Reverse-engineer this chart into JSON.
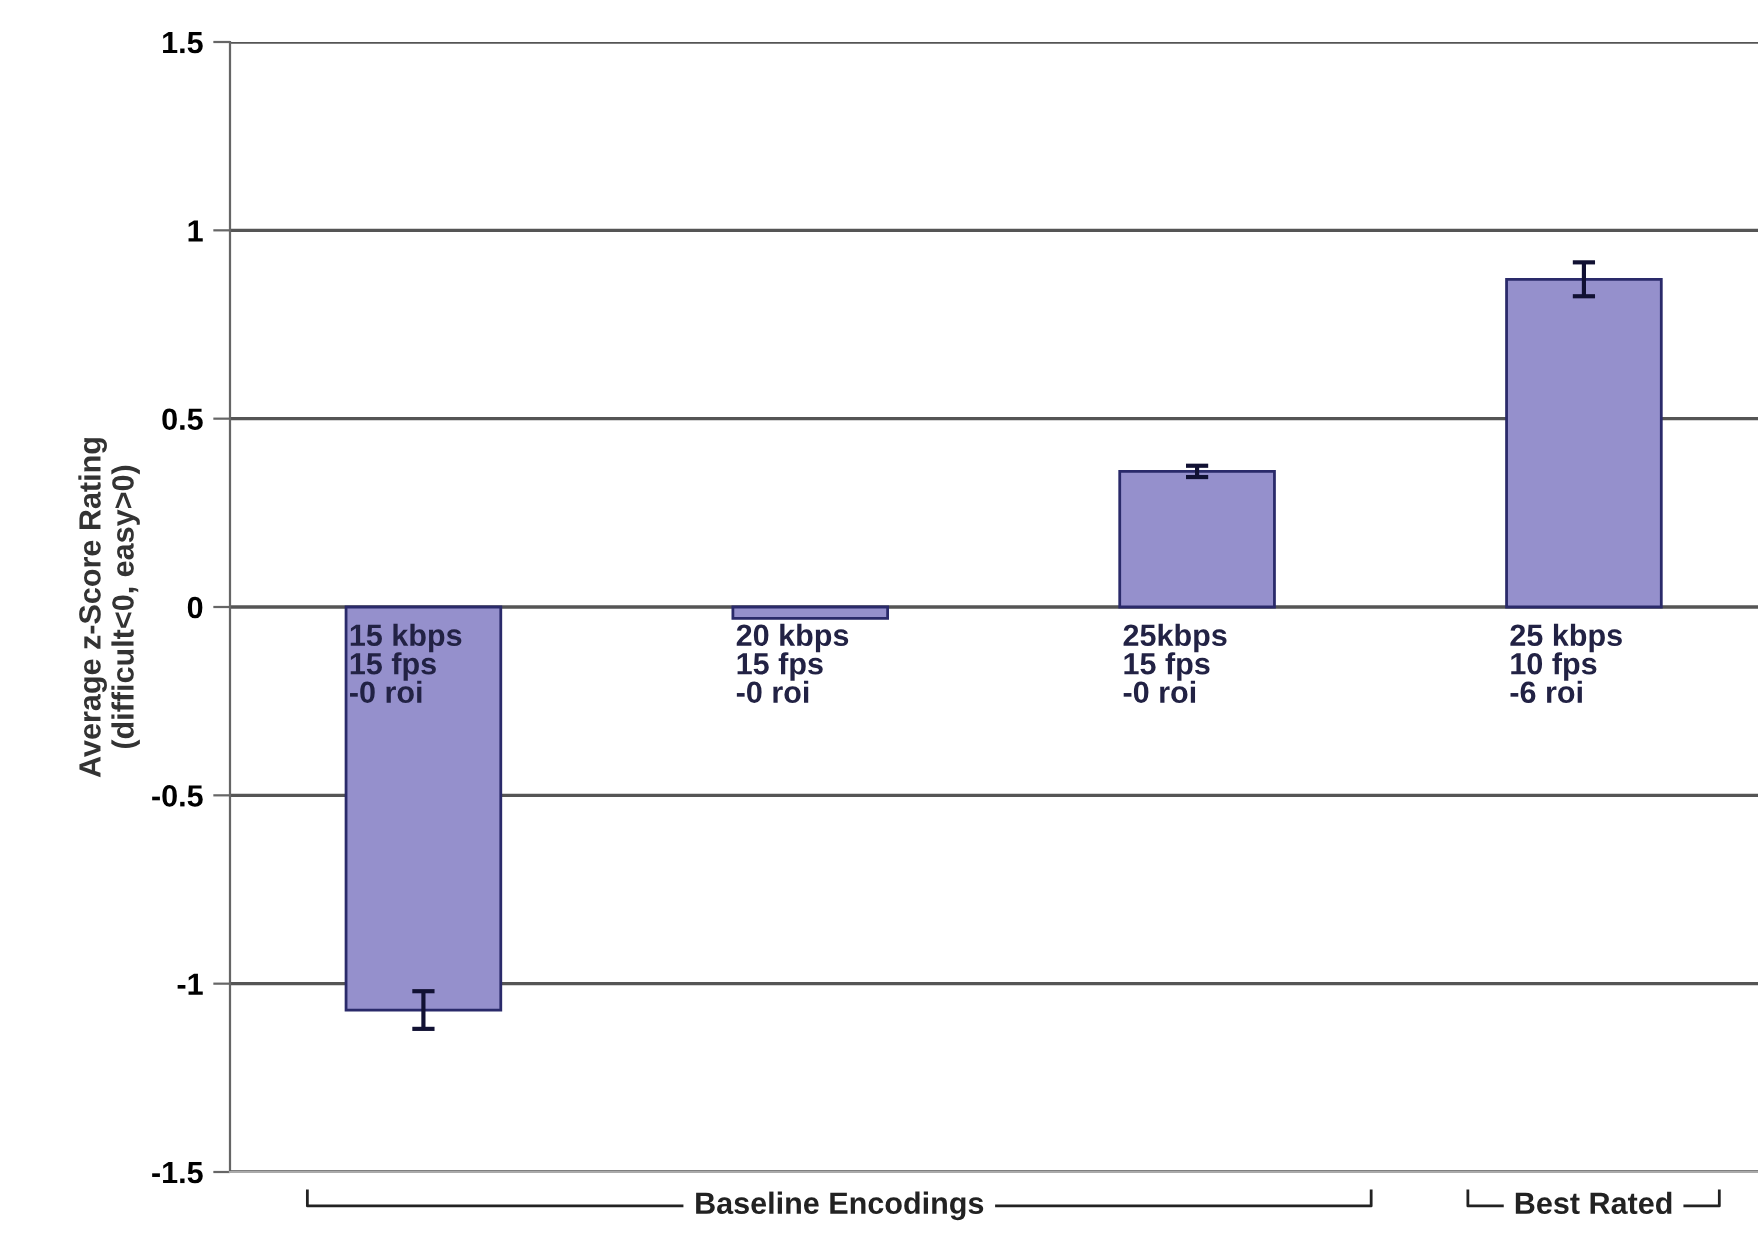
{
  "chart_data": {
    "type": "bar",
    "ylabel": "Average z-Score Rating\n(difficult<0, easy>0)",
    "categories": [
      "15 kbps\n15 fps\n-0 roi",
      "20 kbps\n15 fps\n-0 roi",
      "25kbps\n15 fps\n-0 roi",
      "25 kbps\n10 fps\n-6 roi"
    ],
    "values": [
      -1.07,
      -0.03,
      0.36,
      0.87
    ],
    "errors": [
      0.05,
      null,
      0.015,
      0.045
    ],
    "color": "#9590cc",
    "ylim": [
      -1.5,
      1.5
    ],
    "yticks": [
      -1.5,
      -1,
      -0.5,
      0,
      0.5,
      1,
      1.5
    ],
    "grid": "y",
    "annotations": [
      "Baseline Encodings",
      "Best Rated"
    ]
  }
}
